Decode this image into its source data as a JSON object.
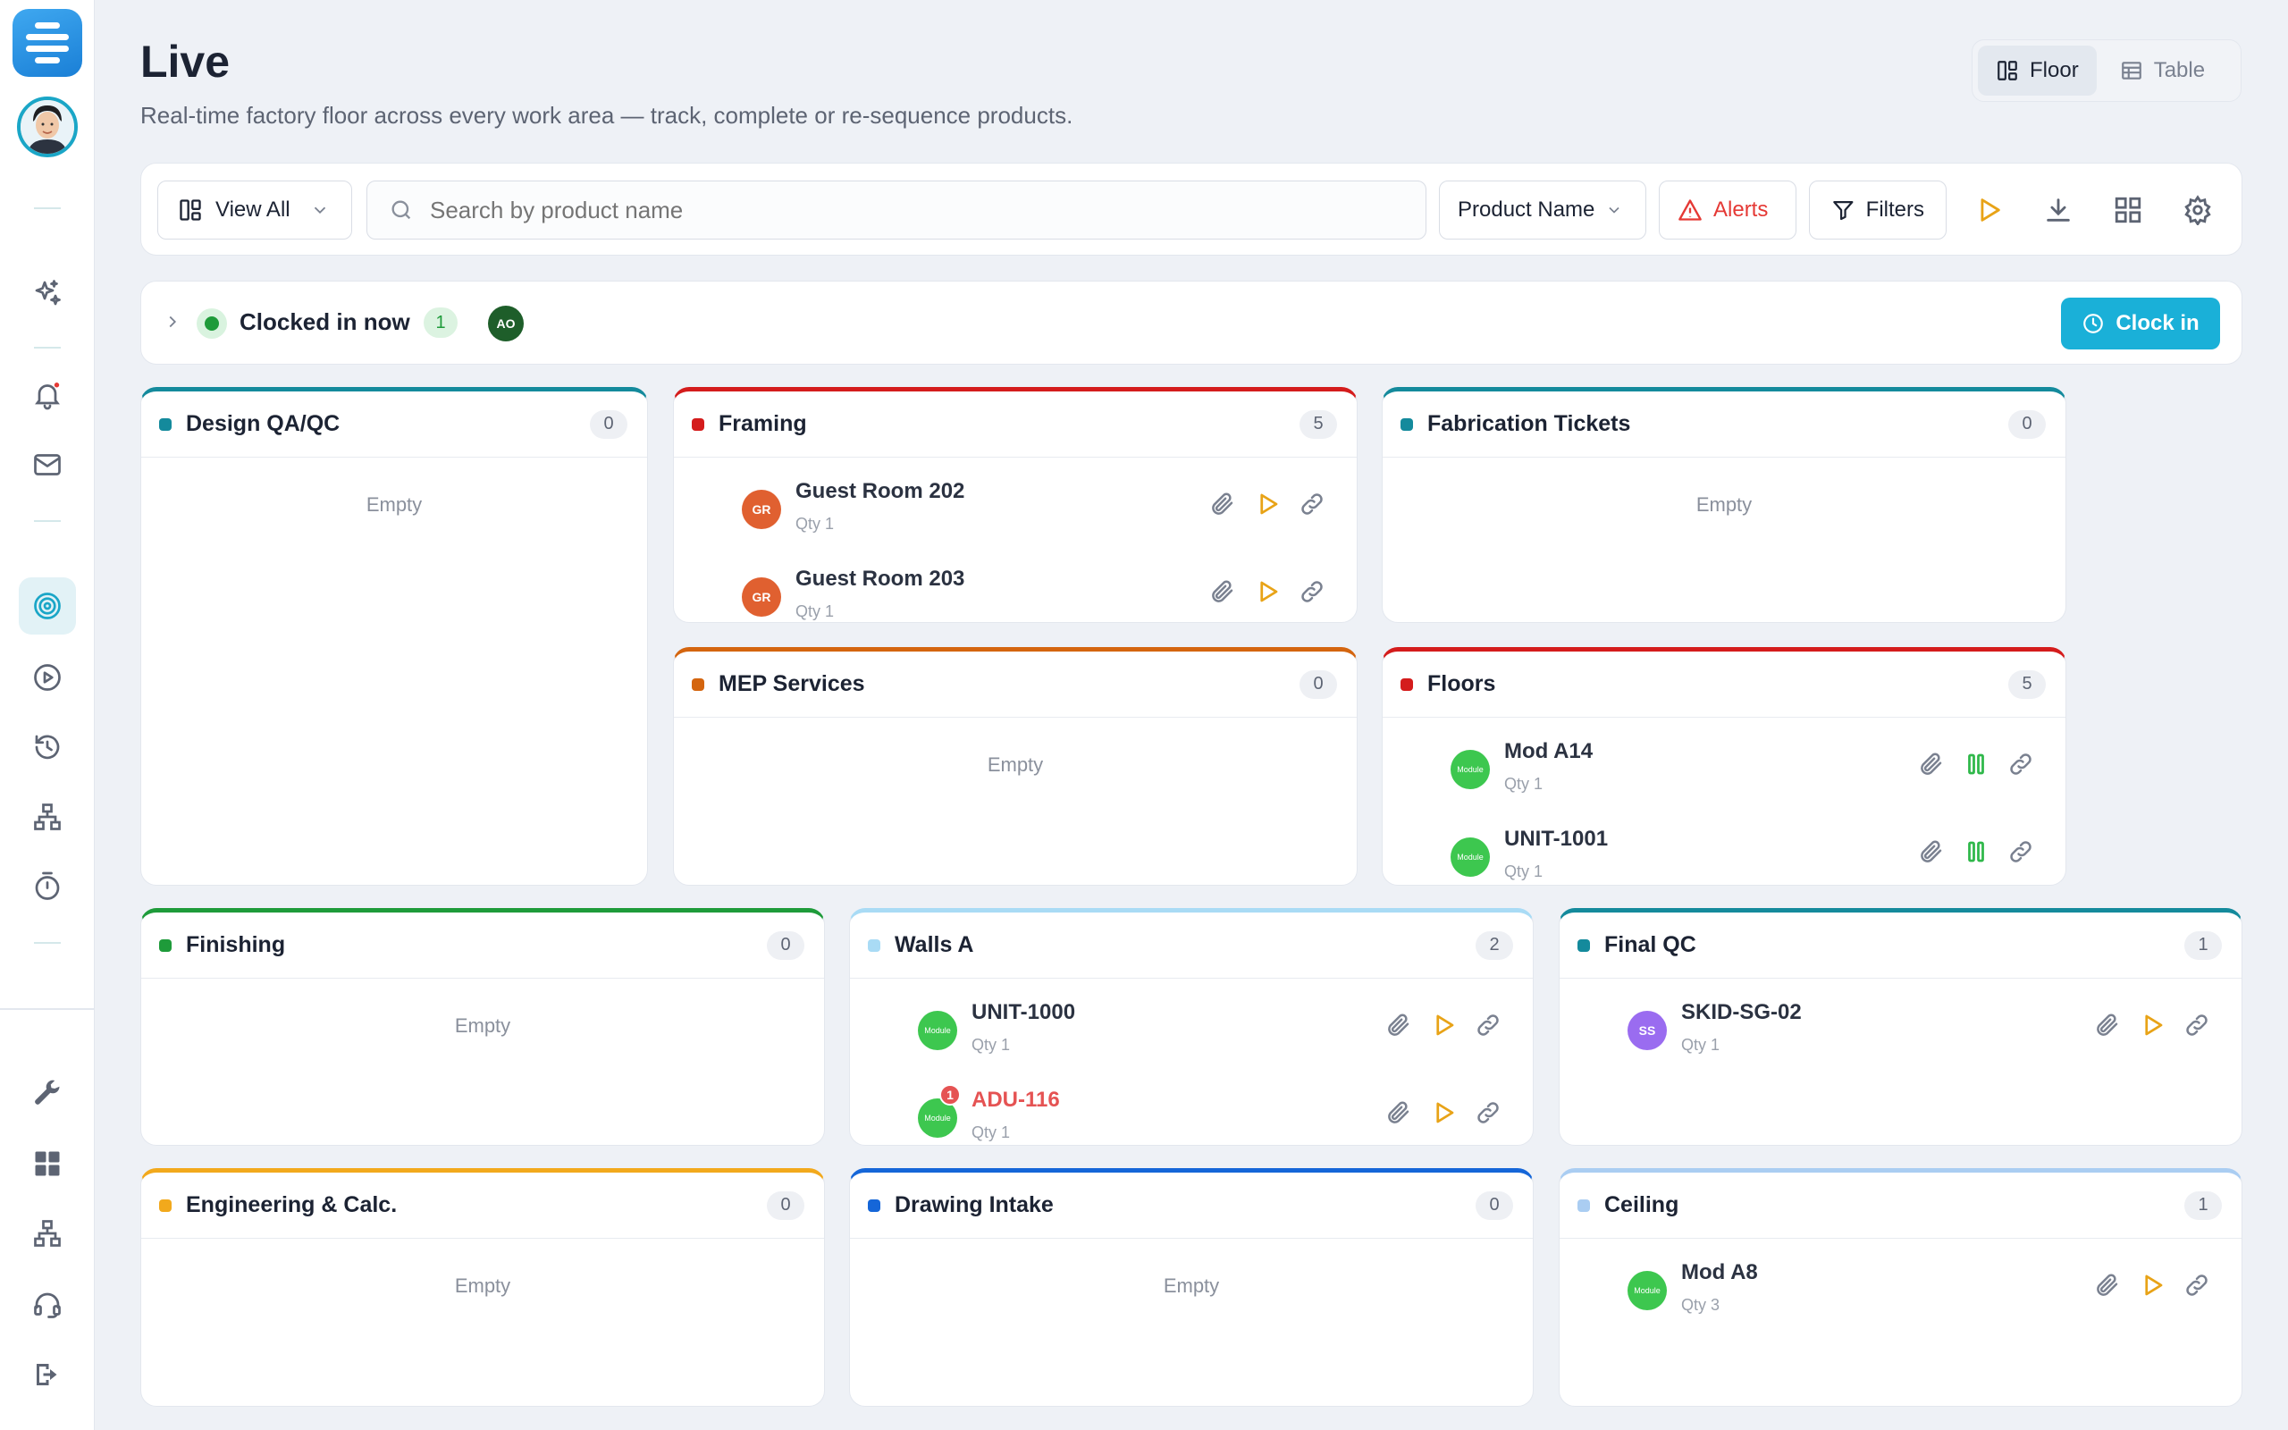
{
  "page": {
    "title": "Live",
    "subtitle": "Real-time factory floor across every work area — track, complete or re-sequence products."
  },
  "view_toggle": {
    "floor": "Floor",
    "table": "Table",
    "selected": "Floor"
  },
  "sidebar": {
    "items": [
      {
        "icon": "sparkles-icon"
      },
      {
        "icon": "bell-icon",
        "has_notification": true
      },
      {
        "icon": "mail-icon"
      },
      {
        "icon": "target-icon",
        "active": true
      },
      {
        "icon": "play-circle-icon"
      },
      {
        "icon": "history-icon"
      },
      {
        "icon": "hierarchy-icon"
      },
      {
        "icon": "stopwatch-icon"
      },
      {
        "icon": "wrench-icon"
      },
      {
        "icon": "dashboard-grid-icon"
      },
      {
        "icon": "org-chart-icon"
      },
      {
        "icon": "support-icon"
      },
      {
        "icon": "logout-icon"
      }
    ]
  },
  "toolbar": {
    "view_all": "View All",
    "search_placeholder": "Search by product name",
    "sort_select": "Product Name",
    "alerts": "Alerts",
    "filters": "Filters"
  },
  "clocked": {
    "label": "Clocked in now",
    "count": "1",
    "user_initials": "AO",
    "clock_in_button": "Clock in"
  },
  "empty_text": "Empty",
  "colors": {
    "accent": "#1ab0d8",
    "play": "#e8a317",
    "pause": "#2fb84a",
    "alert": "#e55353"
  },
  "areas": {
    "design": {
      "title": "Design QA/QC",
      "count": "0",
      "color": "#148a9c"
    },
    "framing": {
      "title": "Framing",
      "count": "5",
      "color": "#d41c1c",
      "items": [
        {
          "name": "Guest Room 202",
          "qty": "Qty 1",
          "initials": "GR"
        },
        {
          "name": "Guest Room 203",
          "qty": "Qty 1",
          "initials": "GR"
        }
      ]
    },
    "fabrication": {
      "title": "Fabrication Tickets",
      "count": "0",
      "color": "#148a9c"
    },
    "mep": {
      "title": "MEP Services",
      "count": "0",
      "color": "#d4650f"
    },
    "floors": {
      "title": "Floors",
      "count": "5",
      "color": "#d41c1c",
      "items": [
        {
          "name": "Mod A14",
          "qty": "Qty 1",
          "avatar": "Module"
        },
        {
          "name": "UNIT-1001",
          "qty": "Qty 1",
          "avatar": "Module"
        }
      ]
    },
    "finishing": {
      "title": "Finishing",
      "count": "0",
      "color": "#1e9b3a"
    },
    "walls": {
      "title": "Walls A",
      "count": "2",
      "color": "#a9dbf5",
      "items": [
        {
          "name": "UNIT-1000",
          "qty": "Qty 1",
          "avatar": "Module"
        },
        {
          "name": "ADU-116",
          "qty": "Qty 1",
          "avatar": "Module",
          "alert_badge": "1"
        }
      ]
    },
    "finalqc": {
      "title": "Final QC",
      "count": "1",
      "color": "#148a9c",
      "items": [
        {
          "name": "SKID-SG-02",
          "qty": "Qty 1",
          "initials": "SS"
        }
      ]
    },
    "engineering": {
      "title": "Engineering & Calc.",
      "count": "0",
      "color": "#f2a91c"
    },
    "drawing": {
      "title": "Drawing Intake",
      "count": "0",
      "color": "#1566d8"
    },
    "ceiling": {
      "title": "Ceiling",
      "count": "1",
      "color": "#aacdf2",
      "items": [
        {
          "name": "Mod A8",
          "qty": "Qty 3",
          "avatar": "Module"
        }
      ]
    }
  }
}
